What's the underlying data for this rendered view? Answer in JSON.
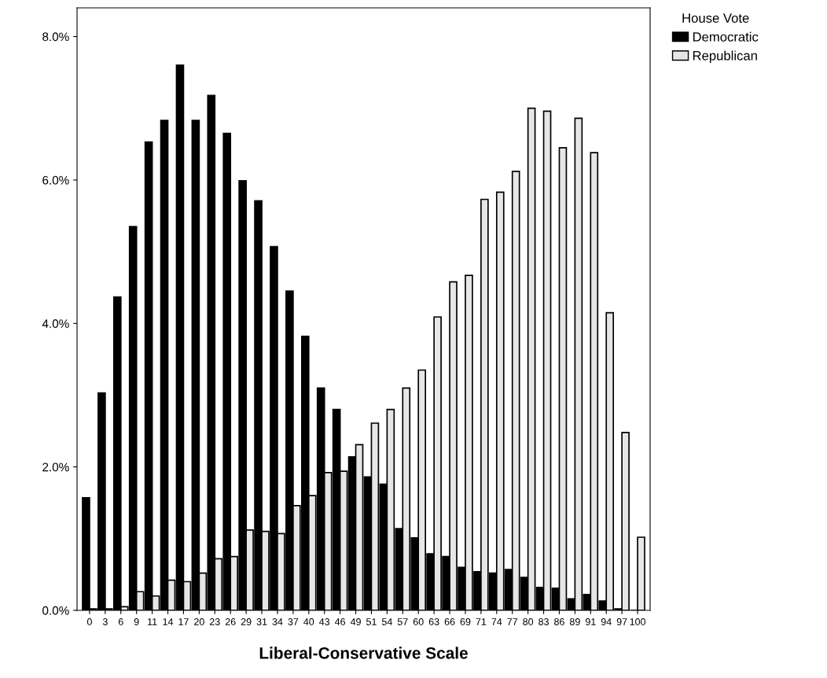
{
  "chart_data": {
    "type": "bar",
    "xlabel": "Liberal-Conservative Scale",
    "legend_title": "House Vote",
    "legend": "top right",
    "categories": [
      "0",
      "3",
      "6",
      "9",
      "11",
      "14",
      "17",
      "20",
      "23",
      "26",
      "29",
      "31",
      "34",
      "37",
      "40",
      "43",
      "46",
      "49",
      "51",
      "54",
      "57",
      "60",
      "63",
      "66",
      "69",
      "71",
      "74",
      "77",
      "80",
      "83",
      "86",
      "89",
      "91",
      "94",
      "97",
      "100"
    ],
    "series": [
      {
        "name": "Democratic",
        "color": "#000000",
        "values": [
          1.57,
          3.03,
          4.37,
          5.35,
          6.53,
          6.83,
          7.6,
          6.83,
          7.18,
          6.65,
          5.99,
          5.71,
          5.07,
          4.45,
          3.82,
          3.1,
          2.8,
          2.14,
          1.86,
          1.76,
          1.14,
          1.01,
          0.79,
          0.75,
          0.6,
          0.54,
          0.52,
          0.57,
          0.46,
          0.32,
          0.31,
          0.16,
          0.22,
          0.13,
          0.02,
          0.0
        ]
      },
      {
        "name": "Republican",
        "color": "#e6e6e6",
        "values": [
          0.02,
          0.02,
          0.05,
          0.26,
          0.2,
          0.42,
          0.4,
          0.52,
          0.72,
          0.75,
          1.12,
          1.1,
          1.07,
          1.46,
          1.6,
          1.92,
          1.94,
          2.31,
          2.61,
          2.8,
          3.1,
          3.35,
          4.09,
          4.58,
          4.67,
          5.73,
          5.83,
          6.12,
          7.0,
          6.96,
          6.45,
          6.86,
          6.38,
          4.15,
          2.48,
          1.02
        ]
      }
    ],
    "ylim": [
      0,
      8.4
    ],
    "yticks": [
      {
        "value": 0,
        "label": "0.0%"
      },
      {
        "value": 2,
        "label": "2.0%"
      },
      {
        "value": 4,
        "label": "4.0%"
      },
      {
        "value": 6,
        "label": "6.0%"
      },
      {
        "value": 8,
        "label": "8.0%"
      }
    ],
    "grid": false
  }
}
